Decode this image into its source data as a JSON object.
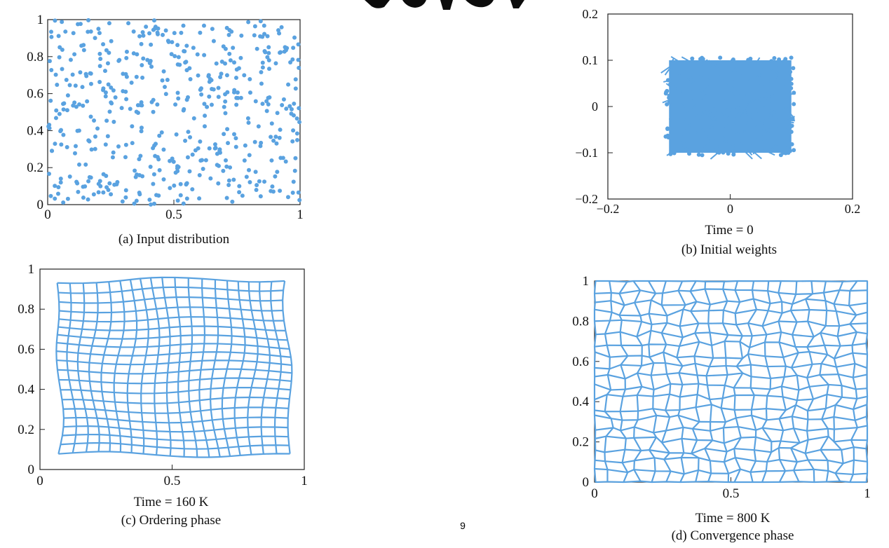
{
  "page": {
    "number": "9"
  },
  "colors": {
    "mark": "#5aa2e0",
    "axis": "#222222",
    "background": "#ffffff"
  },
  "chart_data": [
    {
      "type": "scatter",
      "caption": "(a) Input distribution",
      "time_label": "",
      "xlim": [
        0,
        1
      ],
      "ylim": [
        0,
        1
      ],
      "x_ticks": [
        "0",
        "0.5",
        "1"
      ],
      "y_ticks": [
        "0",
        "0.2",
        "0.4",
        "0.6",
        "0.8",
        "1"
      ],
      "n_points": 500,
      "distribution": "uniform random over [0,1] x [0,1]"
    },
    {
      "type": "scatter",
      "caption": "(b) Initial weights",
      "time_label": "Time = 0",
      "xlim": [
        -0.2,
        0.2
      ],
      "ylim": [
        -0.2,
        0.2
      ],
      "x_ticks": [
        "−0.2",
        "0",
        "0.2"
      ],
      "y_ticks": [
        "−0.2",
        "−0.1",
        "0",
        "0.1",
        "0.2"
      ],
      "weight_region": {
        "x": [
          -0.1,
          0.1
        ],
        "y": [
          -0.1,
          0.1
        ]
      },
      "distribution": "dense tangled lattice filling [-0.1,0.1] x [-0.1,0.1]"
    },
    {
      "type": "line",
      "caption": "(c) Ordering phase",
      "time_label": "Time = 160 K",
      "xlim": [
        0,
        1
      ],
      "ylim": [
        0,
        1
      ],
      "x_ticks": [
        "0",
        "0.5",
        "1"
      ],
      "y_ticks": [
        "0",
        "0.2",
        "0.4",
        "0.6",
        "0.8",
        "1"
      ],
      "grid_nodes": [
        20,
        20
      ],
      "grid_extent": {
        "x": [
          0.07,
          0.94
        ],
        "y": [
          0.07,
          0.94
        ]
      },
      "distortion": "smooth wavy"
    },
    {
      "type": "line",
      "caption": "(d) Convergence phase",
      "time_label": "Time = 800 K",
      "xlim": [
        0,
        1
      ],
      "ylim": [
        0,
        1
      ],
      "x_ticks": [
        "0",
        "0.5",
        "1"
      ],
      "y_ticks": [
        "0",
        "0.2",
        "0.4",
        "0.6",
        "0.8",
        "1"
      ],
      "grid_nodes": [
        20,
        20
      ],
      "grid_extent": {
        "x": [
          0.0,
          1.0
        ],
        "y": [
          0.0,
          1.0
        ]
      },
      "distortion": "jittered"
    }
  ]
}
